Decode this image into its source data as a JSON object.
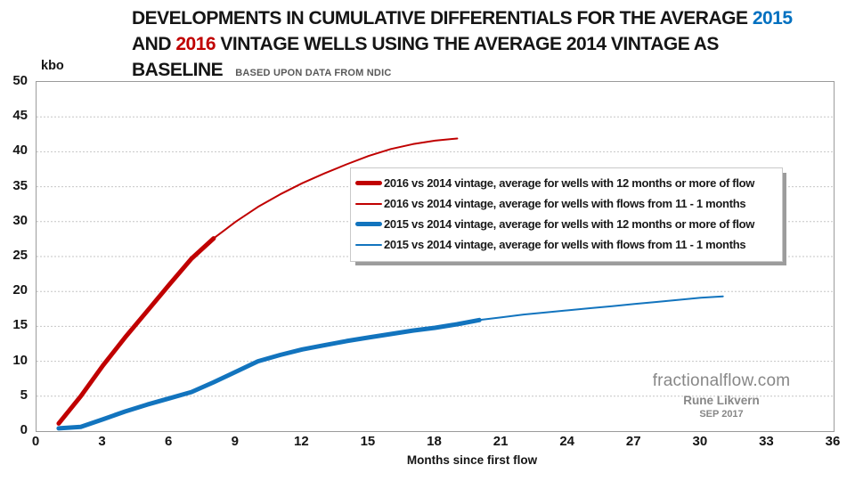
{
  "title": {
    "line1_prefix": "DEVELOPMENTS IN CUMULATIVE DIFFERENTIALS FOR THE AVERAGE ",
    "line1_year": "2015",
    "line2_prefix": "AND ",
    "line2_year": "2016",
    "line2_suffix": " VINTAGE WELLS USING THE AVERAGE 2014 VINTAGE AS",
    "line3": "BASELINE",
    "subtitle": "BASED UPON DATA FROM NDIC"
  },
  "watermark": {
    "site": "fractionalflow.com",
    "author": "Rune Likvern",
    "date": "SEP 2017"
  },
  "colors": {
    "red": "#C00000",
    "blue": "#1274BE",
    "title_blue": "#0070C0",
    "title_red": "#C00000",
    "grid": "#c6c6c6",
    "plot_border": "#9b9b9b",
    "subtitle_gray": "#595959",
    "watermark_gray": "#878787"
  },
  "chart_data": {
    "type": "line",
    "title": "DEVELOPMENTS IN CUMULATIVE DIFFERENTIALS FOR THE AVERAGE 2015 AND 2016 VINTAGE WELLS USING THE AVERAGE 2014 VINTAGE AS BASELINE",
    "subtitle": "BASED UPON DATA FROM NDIC",
    "xlabel": "Months since first flow",
    "ylabel": "kbo",
    "xlim": [
      0,
      36
    ],
    "ylim": [
      0,
      50
    ],
    "xticks": [
      0,
      3,
      6,
      9,
      12,
      15,
      18,
      21,
      24,
      27,
      30,
      33,
      36
    ],
    "yticks": [
      0,
      5,
      10,
      15,
      20,
      25,
      30,
      35,
      40,
      45,
      50
    ],
    "grid": "horizontal dotted",
    "legend_position": "inside center-right, white box with gray drop shadow",
    "series": [
      {
        "name": "2016 vs 2014 vintage, average for wells with 12 months or more of flow",
        "color": "#C00000",
        "width": 5,
        "x": [
          1,
          2,
          3,
          4,
          5,
          6,
          7,
          8
        ],
        "y": [
          1.1,
          5.0,
          9.4,
          13.4,
          17.2,
          21.0,
          24.7,
          27.6
        ]
      },
      {
        "name": "2016 vs 2014 vintage, average for wells with flows from 11 - 1 months",
        "color": "#C00000",
        "width": 2,
        "x": [
          8,
          9,
          10,
          11,
          12,
          13,
          14,
          15,
          16,
          17,
          18,
          19
        ],
        "y": [
          27.6,
          30.0,
          32.1,
          33.9,
          35.5,
          36.9,
          38.2,
          39.4,
          40.4,
          41.1,
          41.6,
          41.9
        ]
      },
      {
        "name": "2015 vs 2014 vintage, average for wells with 12 months or more of flow",
        "color": "#1274BE",
        "width": 5,
        "x": [
          1,
          2,
          3,
          4,
          5,
          6,
          7,
          8,
          9,
          10,
          11,
          12,
          13,
          14,
          15,
          16,
          17,
          18,
          19,
          20
        ],
        "y": [
          0.4,
          0.6,
          1.7,
          2.8,
          3.8,
          4.7,
          5.6,
          7.0,
          8.5,
          10.0,
          10.9,
          11.7,
          12.3,
          12.9,
          13.4,
          13.9,
          14.4,
          14.8,
          15.3,
          15.9
        ]
      },
      {
        "name": "2015 vs 2014 vintage, average for wells with flows from 11 - 1 months",
        "color": "#1274BE",
        "width": 2,
        "x": [
          20,
          21,
          22,
          23,
          24,
          25,
          26,
          27,
          28,
          29,
          30,
          31
        ],
        "y": [
          15.9,
          16.3,
          16.7,
          17.0,
          17.3,
          17.6,
          17.9,
          18.2,
          18.5,
          18.8,
          19.1,
          19.3
        ]
      }
    ]
  }
}
